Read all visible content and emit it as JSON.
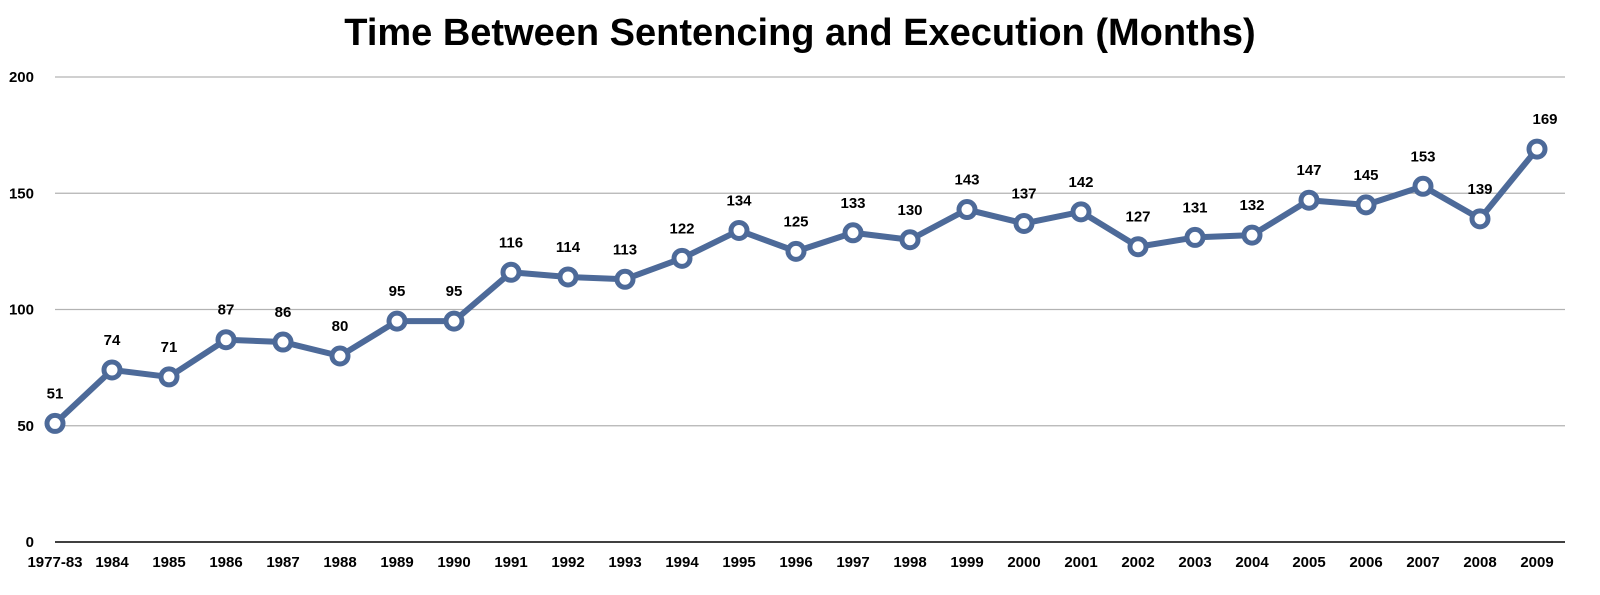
{
  "chart_data": {
    "type": "line",
    "title": "Time Between Sentencing and Execution (Months)",
    "xlabel": "",
    "ylabel": "",
    "categories": [
      "1977-83",
      "1984",
      "1985",
      "1986",
      "1987",
      "1988",
      "1989",
      "1990",
      "1991",
      "1992",
      "1993",
      "1994",
      "1995",
      "1996",
      "1997",
      "1998",
      "1999",
      "2000",
      "2001",
      "2002",
      "2003",
      "2004",
      "2005",
      "2006",
      "2007",
      "2008",
      "2009"
    ],
    "series": [
      {
        "values": [
          51,
          74,
          71,
          87,
          86,
          80,
          95,
          95,
          116,
          114,
          113,
          122,
          134,
          125,
          133,
          130,
          143,
          137,
          142,
          127,
          131,
          132,
          147,
          145,
          153,
          139,
          169
        ]
      }
    ],
    "ylim": [
      0,
      200
    ],
    "yticks": [
      "0",
      "50",
      "100",
      "150",
      "200"
    ],
    "data_labels": [
      "51",
      "74",
      "71",
      "87",
      "86",
      "80",
      "95",
      "95",
      "116",
      "114",
      "113",
      "122",
      "134",
      "125",
      "133",
      "130",
      "143",
      "137",
      "142",
      "127",
      "131",
      "132",
      "147",
      "145",
      "153",
      "139",
      "169"
    ],
    "grid": true,
    "legend": "none",
    "colors": {
      "line": "#4d6a99",
      "marker_fill": "#ffffff",
      "grid": "#b3b3b3",
      "axis": "#000000"
    }
  }
}
